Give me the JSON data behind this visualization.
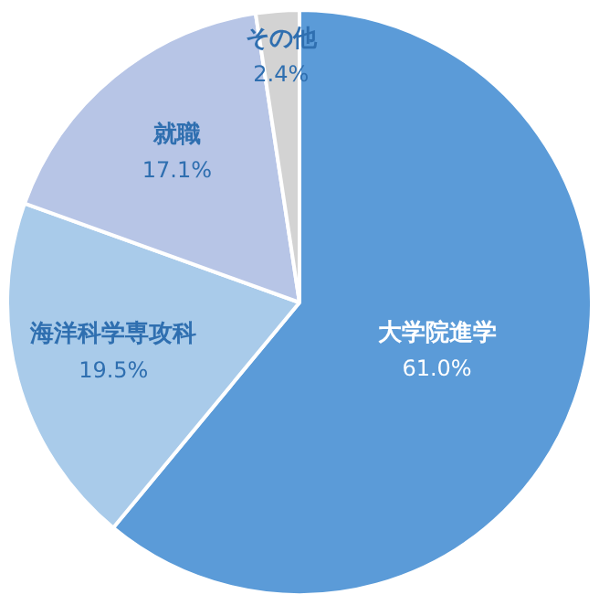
{
  "chart_data": {
    "type": "pie",
    "categories": [
      "大学院進学",
      "海洋科学専攻科",
      "就職",
      "その他"
    ],
    "values": [
      61.0,
      19.5,
      17.1,
      2.4
    ],
    "colors": [
      "#5b9bd8",
      "#a9cbea",
      "#b7c5e6",
      "#d3d3d3"
    ],
    "value_labels": [
      "61.0%",
      "19.5%",
      "17.1%",
      "2.4%"
    ],
    "legend": false
  }
}
